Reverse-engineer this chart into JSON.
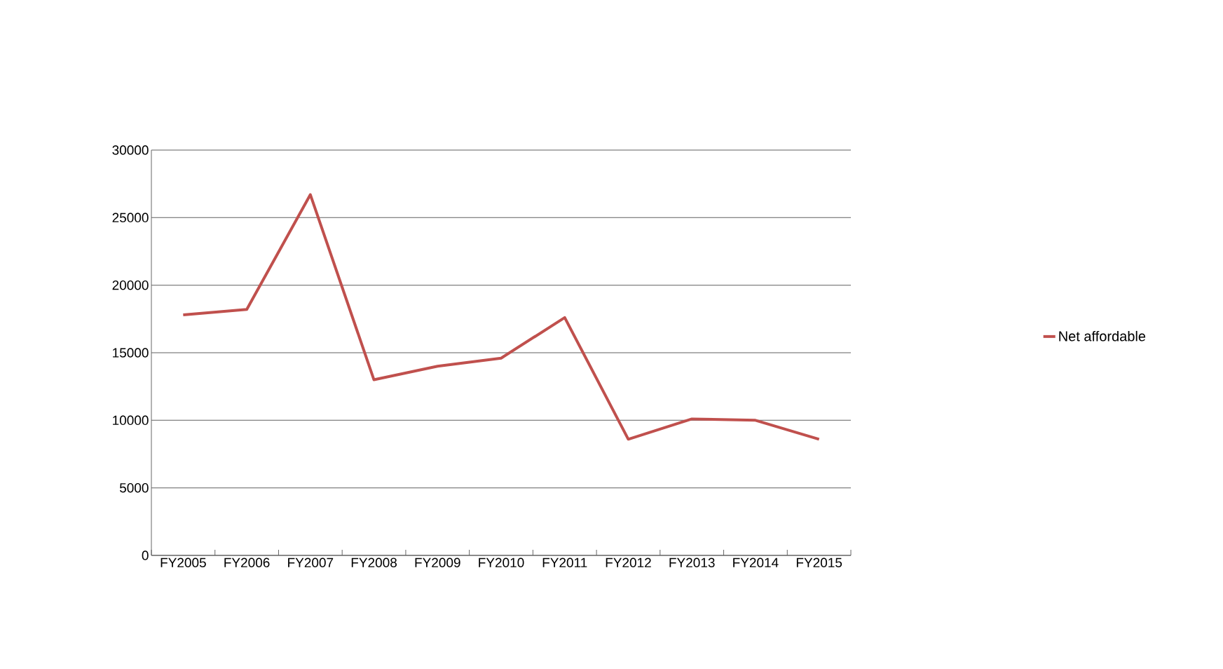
{
  "chart_data": {
    "type": "line",
    "categories": [
      "FY2005",
      "FY2006",
      "FY2007",
      "FY2008",
      "FY2009",
      "FY2010",
      "FY2011",
      "FY2012",
      "FY2013",
      "FY2014",
      "FY2015"
    ],
    "series": [
      {
        "name": "Net affordable",
        "color": "#c0504d",
        "values": [
          17800,
          18200,
          26700,
          13000,
          14000,
          14600,
          17600,
          8600,
          10100,
          10000,
          8600
        ]
      }
    ],
    "ylim": [
      0,
      30000
    ],
    "yticks": [
      0,
      5000,
      10000,
      15000,
      20000,
      25000,
      30000
    ],
    "grid": "y",
    "legend": "right",
    "marker": "none",
    "line_style": "solid"
  }
}
